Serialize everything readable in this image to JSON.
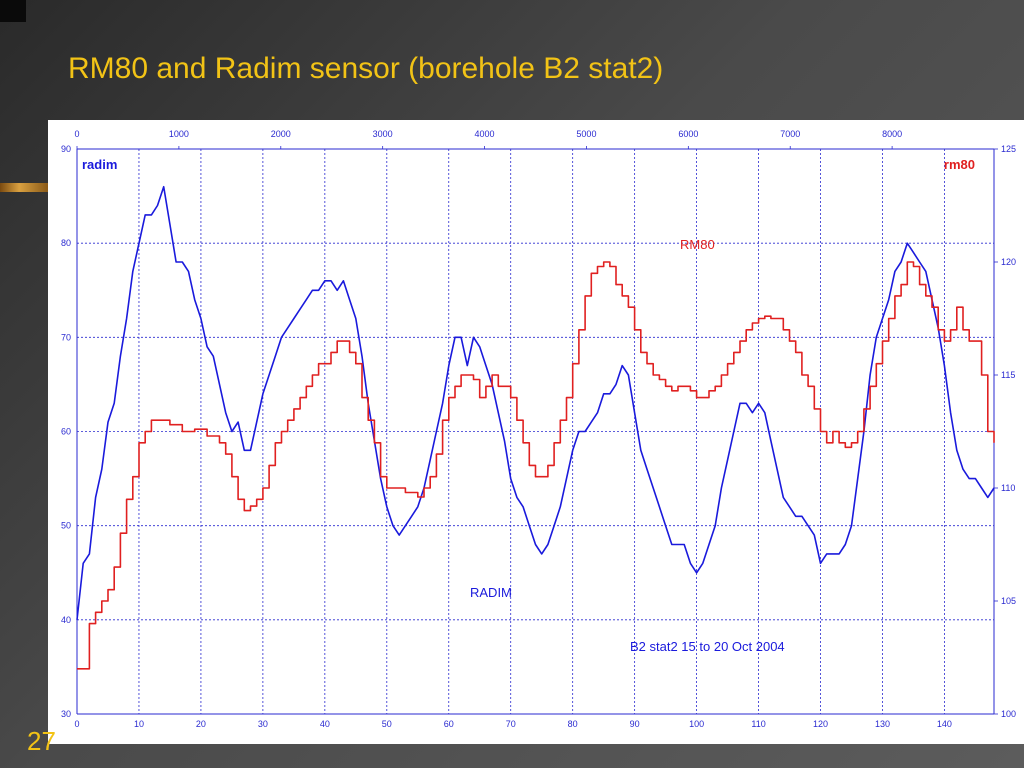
{
  "slide": {
    "title": "RM80 and Radim sensor (borehole B2 stat2)",
    "page_number": "27"
  },
  "colors": {
    "radim": "#1a1adc",
    "rm80": "#e02020",
    "grid": "#2a2ad0",
    "title": "#f2c316"
  },
  "chart_data": {
    "type": "line",
    "title": "",
    "annotations": {
      "left_axis_label": "radim",
      "right_axis_label": "rm80",
      "rm80_series_label": "RM80",
      "radim_series_label": "RADIM",
      "caption": "B2 stat2  15 to 20 Oct 2004"
    },
    "grid": true,
    "x_bottom": {
      "range": [
        0,
        148
      ],
      "ticks": [
        0,
        10,
        20,
        30,
        40,
        50,
        60,
        70,
        80,
        90,
        100,
        110,
        120,
        130,
        140
      ]
    },
    "x_top": {
      "range": [
        0,
        9000
      ],
      "ticks": [
        0,
        1000,
        2000,
        3000,
        4000,
        5000,
        6000,
        7000,
        8000
      ]
    },
    "y_left": {
      "range": [
        30,
        90
      ],
      "ticks": [
        30,
        40,
        50,
        60,
        70,
        80,
        90
      ]
    },
    "y_right": {
      "range": [
        100,
        125
      ],
      "ticks": [
        100,
        105,
        110,
        115,
        120,
        125
      ]
    },
    "series": [
      {
        "name": "RADIM",
        "axis": "left",
        "x": [
          0,
          1,
          2,
          3,
          4,
          5,
          6,
          7,
          8,
          9,
          10,
          11,
          12,
          13,
          14,
          15,
          16,
          17,
          18,
          19,
          20,
          21,
          22,
          23,
          24,
          25,
          26,
          27,
          28,
          29,
          30,
          31,
          32,
          33,
          34,
          35,
          36,
          37,
          38,
          39,
          40,
          41,
          42,
          43,
          44,
          45,
          46,
          47,
          48,
          49,
          50,
          51,
          52,
          53,
          54,
          55,
          56,
          57,
          58,
          59,
          60,
          61,
          62,
          63,
          64,
          65,
          66,
          67,
          68,
          69,
          70,
          71,
          72,
          73,
          74,
          75,
          76,
          77,
          78,
          79,
          80,
          81,
          82,
          83,
          84,
          85,
          86,
          87,
          88,
          89,
          90,
          91,
          92,
          93,
          94,
          95,
          96,
          97,
          98,
          99,
          100,
          101,
          102,
          103,
          104,
          105,
          106,
          107,
          108,
          109,
          110,
          111,
          112,
          113,
          114,
          115,
          116,
          117,
          118,
          119,
          120,
          121,
          122,
          123,
          124,
          125,
          126,
          127,
          128,
          129,
          130,
          131,
          132,
          133,
          134,
          135,
          136,
          137,
          138,
          139,
          140,
          141,
          142,
          143,
          144,
          145,
          146,
          147,
          148
        ],
        "values": [
          40,
          46,
          47,
          53,
          56,
          61,
          63,
          68,
          72,
          77,
          80,
          83,
          83,
          84,
          86,
          82,
          78,
          78,
          77,
          74,
          72,
          69,
          68,
          65,
          62,
          60,
          61,
          58,
          58,
          61,
          64,
          66,
          68,
          70,
          71,
          72,
          73,
          74,
          75,
          75,
          76,
          76,
          75,
          76,
          74,
          72,
          68,
          63,
          59,
          55,
          52,
          50,
          49,
          50,
          51,
          52,
          54,
          57,
          60,
          63,
          67,
          70,
          70,
          67,
          70,
          69,
          67,
          65,
          62,
          59,
          55,
          53,
          52,
          50,
          48,
          47,
          48,
          50,
          52,
          55,
          58,
          60,
          60,
          61,
          62,
          64,
          64,
          65,
          67,
          66,
          62,
          58,
          56,
          54,
          52,
          50,
          48,
          48,
          48,
          46,
          45,
          46,
          48,
          50,
          54,
          57,
          60,
          63,
          63,
          62,
          63,
          62,
          59,
          56,
          53,
          52,
          51,
          51,
          50,
          49,
          46,
          47,
          47,
          47,
          48,
          50,
          55,
          60,
          66,
          70,
          72,
          74,
          77,
          78,
          80,
          79,
          78,
          77,
          74,
          71,
          67,
          62,
          58,
          56,
          55,
          55,
          54,
          53,
          54
        ]
      },
      {
        "name": "RM80",
        "axis": "right",
        "x": [
          0,
          1,
          2,
          3,
          4,
          5,
          6,
          7,
          8,
          9,
          10,
          11,
          12,
          13,
          14,
          15,
          16,
          17,
          18,
          19,
          20,
          21,
          22,
          23,
          24,
          25,
          26,
          27,
          28,
          29,
          30,
          31,
          32,
          33,
          34,
          35,
          36,
          37,
          38,
          39,
          40,
          41,
          42,
          43,
          44,
          45,
          46,
          47,
          48,
          49,
          50,
          51,
          52,
          53,
          54,
          55,
          56,
          57,
          58,
          59,
          60,
          61,
          62,
          63,
          64,
          65,
          66,
          67,
          68,
          69,
          70,
          71,
          72,
          73,
          74,
          75,
          76,
          77,
          78,
          79,
          80,
          81,
          82,
          83,
          84,
          85,
          86,
          87,
          88,
          89,
          90,
          91,
          92,
          93,
          94,
          95,
          96,
          97,
          98,
          99,
          100,
          101,
          102,
          103,
          104,
          105,
          106,
          107,
          108,
          109,
          110,
          111,
          112,
          113,
          114,
          115,
          116,
          117,
          118,
          119,
          120,
          121,
          122,
          123,
          124,
          125,
          126,
          127,
          128,
          129,
          130,
          131,
          132,
          133,
          134,
          135,
          136,
          137,
          138,
          139,
          140,
          141,
          142,
          143,
          144,
          145,
          146,
          147,
          148
        ],
        "values": [
          102,
          102,
          104,
          104.5,
          105,
          105.5,
          106.5,
          108,
          109.5,
          110.5,
          112,
          112.5,
          113,
          113,
          113,
          112.8,
          112.8,
          112.5,
          112.5,
          112.6,
          112.6,
          112.3,
          112.3,
          112,
          111.5,
          110.5,
          109.5,
          109,
          109.2,
          109.5,
          110,
          111,
          112,
          112.5,
          113,
          113.5,
          114,
          114.5,
          115,
          115.5,
          115.5,
          116,
          116.5,
          116.5,
          116,
          115.5,
          114,
          113,
          112,
          110.5,
          110,
          110,
          110,
          109.8,
          109.8,
          109.6,
          110,
          110.5,
          111.5,
          113,
          114,
          114.5,
          115,
          115,
          114.8,
          114,
          114.5,
          115,
          114.5,
          114.5,
          114,
          113,
          112,
          111,
          110.5,
          110.5,
          111,
          112,
          113,
          114,
          115.5,
          117,
          118.5,
          119.5,
          119.8,
          120,
          119.8,
          119,
          118.5,
          118,
          117,
          116,
          115.5,
          115,
          114.8,
          114.5,
          114.3,
          114.5,
          114.5,
          114.3,
          114,
          114,
          114.3,
          114.5,
          115,
          115.5,
          116,
          116.5,
          117,
          117.3,
          117.5,
          117.6,
          117.5,
          117.5,
          117,
          116.5,
          116,
          115,
          114.5,
          113.5,
          112.5,
          112,
          112.5,
          112,
          111.8,
          112,
          112.5,
          113.5,
          114.5,
          115.5,
          116.5,
          117.5,
          118.5,
          119,
          120,
          119.8,
          119,
          118.5,
          118,
          117,
          116.5,
          117,
          118,
          117,
          116.5,
          116.5,
          115,
          112.5,
          112
        ]
      }
    ]
  }
}
